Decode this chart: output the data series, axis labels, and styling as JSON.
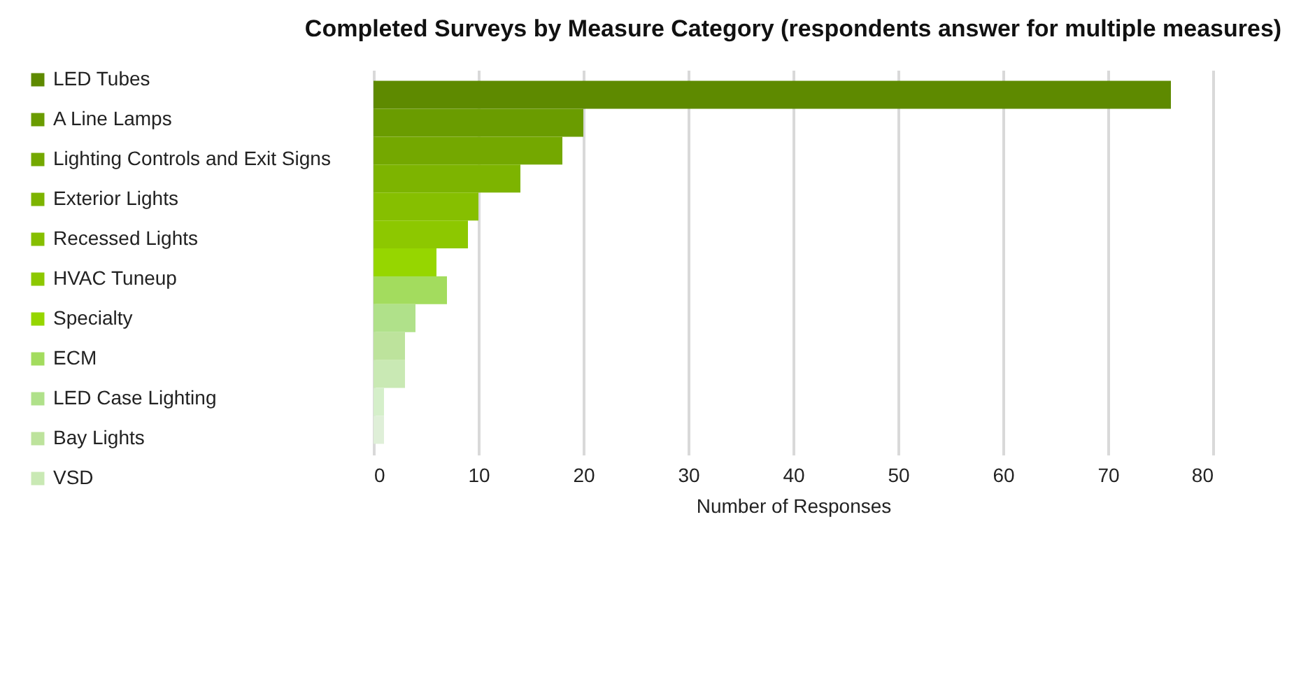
{
  "chart_data": {
    "type": "bar",
    "orientation": "horizontal",
    "title": "Completed Surveys by Measure Category (respondents answer for multiple measures)",
    "xlabel": "Number of Responses",
    "categories": [
      null
    ],
    "xlim": [
      0,
      80
    ],
    "xticks": [
      0,
      10,
      20,
      30,
      40,
      50,
      60,
      70,
      80
    ],
    "grid": "x",
    "legend": "left",
    "series": [
      {
        "name": "LED Tubes",
        "color": "#5e8a00",
        "values": [
          76
        ]
      },
      {
        "name": "A Line Lamps",
        "color": "#6a9c00",
        "values": [
          20
        ]
      },
      {
        "name": "Lighting Controls and Exit Signs",
        "color": "#74a800",
        "values": [
          18
        ]
      },
      {
        "name": "Exterior Lights",
        "color": "#7db400",
        "values": [
          14
        ]
      },
      {
        "name": "Recessed Lights",
        "color": "#86bf00",
        "values": [
          10
        ]
      },
      {
        "name": "HVAC Tuneup",
        "color": "#8dc800",
        "values": [
          9
        ]
      },
      {
        "name": "Specialty",
        "color": "#96d600",
        "values": [
          6
        ]
      },
      {
        "name": "ECM",
        "color": "#a3dc5e",
        "values": [
          7
        ]
      },
      {
        "name": "LED Case Lighting",
        "color": "#b0e18a",
        "values": [
          4
        ]
      },
      {
        "name": "Bay Lights",
        "color": "#bde39c",
        "values": [
          3
        ]
      },
      {
        "name": "VSD",
        "color": "#c9e9b4",
        "values": [
          3
        ]
      },
      {
        "color": "#d5efca",
        "values": [
          1
        ]
      },
      {
        "color": "#dfefd8",
        "values": [
          1
        ]
      }
    ]
  }
}
